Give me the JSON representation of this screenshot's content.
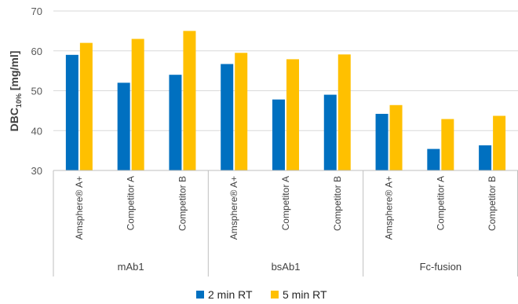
{
  "chart_data": {
    "type": "bar",
    "ylabel_main": "DBC",
    "ylabel_sub": "10%",
    "ylabel_unit": "[mg/ml]",
    "ylim": [
      30,
      70
    ],
    "yticks": [
      30,
      40,
      50,
      60,
      70
    ],
    "grid": true,
    "legend_position": "bottom",
    "groups": [
      {
        "label": "mAb1",
        "categories": [
          "Amsphere® A+",
          "Competitor A",
          "Competitor B"
        ]
      },
      {
        "label": "bsAb1",
        "categories": [
          "Amsphere® A+",
          "Competitor A",
          "Competitor B"
        ]
      },
      {
        "label": "Fc-fusion",
        "categories": [
          "Amsphere® A+",
          "Competitor A",
          "Competitor B"
        ]
      }
    ],
    "series": [
      {
        "name": "2 min RT",
        "color": "#0070C0",
        "values": [
          59,
          52,
          54,
          56.7,
          47.8,
          49,
          44.2,
          35.4,
          36.3
        ]
      },
      {
        "name": "5 min RT",
        "color": "#FFC000",
        "values": [
          62,
          63,
          65,
          59.5,
          57.9,
          59.1,
          46.4,
          42.9,
          43.7
        ]
      }
    ]
  }
}
